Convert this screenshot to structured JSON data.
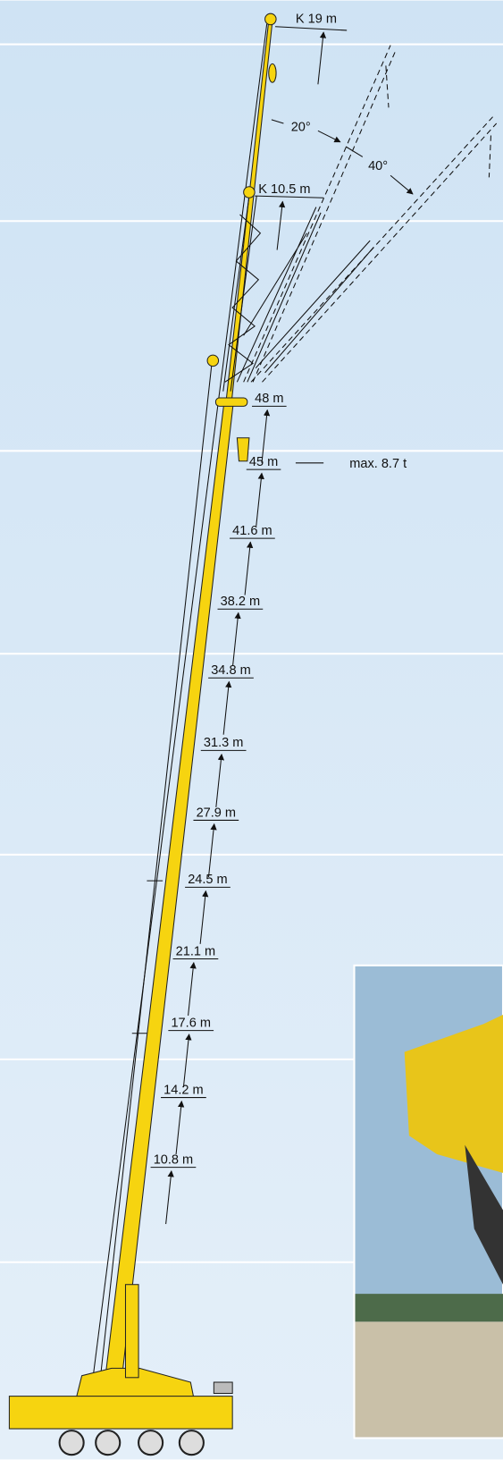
{
  "jib": {
    "long_label": "K 19 m",
    "short_label": "K 10.5 m",
    "angles": [
      "20°",
      "40°"
    ]
  },
  "boom_heights": [
    "48 m",
    "45 m",
    "41.6 m",
    "38.2 m",
    "34.8 m",
    "31.3 m",
    "27.9 m",
    "24.5 m",
    "21.1 m",
    "17.6 m",
    "14.2 m",
    "10.8 m"
  ],
  "max_load": "max. 8.7 t"
}
